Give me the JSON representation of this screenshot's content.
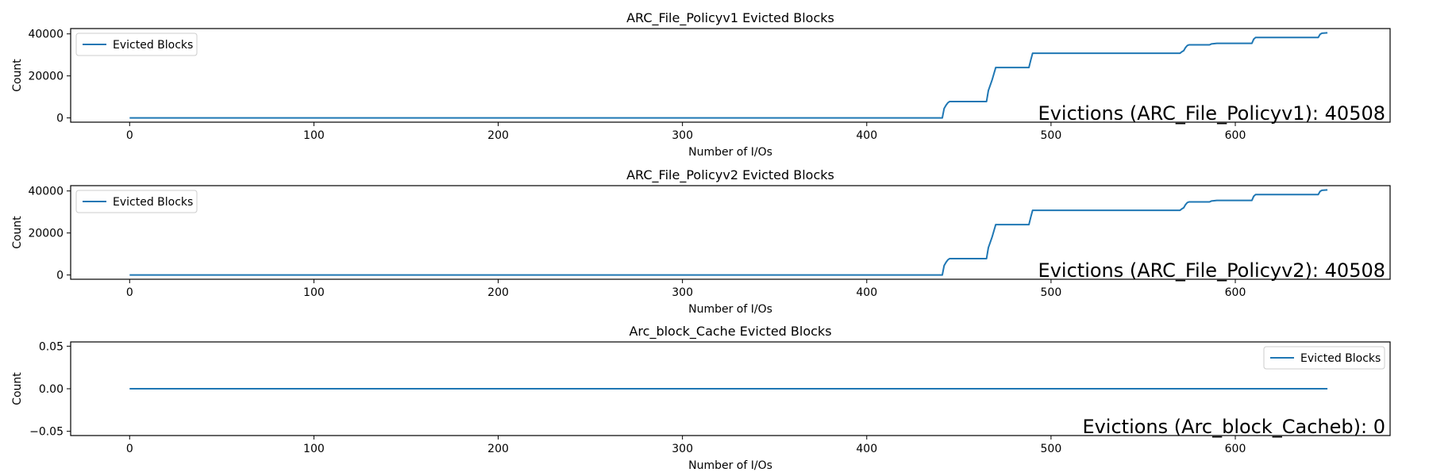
{
  "chart_data": [
    {
      "type": "line",
      "title": "ARC_File_Policyv1 Evicted Blocks",
      "xlabel": "Number of I/Os",
      "ylabel": "Count",
      "xlim": [
        -32,
        684
      ],
      "ylim": [
        -2025,
        42533
      ],
      "xticks": [
        0,
        100,
        200,
        300,
        400,
        500,
        600
      ],
      "xtick_labels": [
        "0",
        "100",
        "200",
        "300",
        "400",
        "500",
        "600"
      ],
      "yticks": [
        0,
        20000,
        40000
      ],
      "ytick_labels": [
        "0",
        "20000",
        "40000"
      ],
      "legend": {
        "label": "Evicted Blocks",
        "position": "upper-left"
      },
      "annotation": "Evictions (ARC_File_Policyv1): 40508",
      "grid": false,
      "series": [
        {
          "name": "Evicted Blocks",
          "color": "#1f77b4",
          "x": [
            0,
            441,
            442,
            443,
            444,
            445,
            465,
            466,
            467,
            468,
            469,
            470,
            488,
            489,
            490,
            570,
            571,
            572,
            573,
            574,
            575,
            586,
            587,
            588,
            590,
            591,
            609,
            610,
            611,
            645,
            646,
            647,
            650
          ],
          "y": [
            0,
            0,
            4500,
            6000,
            7200,
            7800,
            7800,
            13000,
            15500,
            18000,
            21000,
            24000,
            24000,
            27500,
            30800,
            30800,
            31500,
            32000,
            33500,
            34500,
            34800,
            34800,
            35200,
            35300,
            35500,
            35500,
            35500,
            37500,
            38300,
            38300,
            39800,
            40300,
            40508
          ]
        }
      ]
    },
    {
      "type": "line",
      "title": "ARC_File_Policyv2 Evicted Blocks",
      "xlabel": "Number of I/Os",
      "ylabel": "Count",
      "xlim": [
        -32,
        684
      ],
      "ylim": [
        -2025,
        42533
      ],
      "xticks": [
        0,
        100,
        200,
        300,
        400,
        500,
        600
      ],
      "xtick_labels": [
        "0",
        "100",
        "200",
        "300",
        "400",
        "500",
        "600"
      ],
      "yticks": [
        0,
        20000,
        40000
      ],
      "ytick_labels": [
        "0",
        "20000",
        "40000"
      ],
      "legend": {
        "label": "Evicted Blocks",
        "position": "upper-left"
      },
      "annotation": "Evictions (ARC_File_Policyv2): 40508",
      "grid": false,
      "series": [
        {
          "name": "Evicted Blocks",
          "color": "#1f77b4",
          "x": [
            0,
            441,
            442,
            443,
            444,
            445,
            465,
            466,
            467,
            468,
            469,
            470,
            488,
            489,
            490,
            570,
            571,
            572,
            573,
            574,
            575,
            586,
            587,
            588,
            590,
            591,
            609,
            610,
            611,
            645,
            646,
            647,
            650
          ],
          "y": [
            0,
            0,
            4500,
            6000,
            7200,
            7800,
            7800,
            13000,
            15500,
            18000,
            21000,
            24000,
            24000,
            27500,
            30800,
            30800,
            31500,
            32000,
            33500,
            34500,
            34800,
            34800,
            35200,
            35300,
            35500,
            35500,
            35500,
            37500,
            38300,
            38300,
            39800,
            40300,
            40508
          ]
        }
      ]
    },
    {
      "type": "line",
      "title": "Arc_block_Cache Evicted Blocks",
      "xlabel": "Number of I/Os",
      "ylabel": "Count",
      "xlim": [
        -32,
        684
      ],
      "ylim": [
        -0.055,
        0.055
      ],
      "xticks": [
        0,
        100,
        200,
        300,
        400,
        500,
        600
      ],
      "xtick_labels": [
        "0",
        "100",
        "200",
        "300",
        "400",
        "500",
        "600"
      ],
      "yticks": [
        -0.05,
        0.0,
        0.05
      ],
      "ytick_labels": [
        "−0.05",
        "0.00",
        "0.05"
      ],
      "legend": {
        "label": "Evicted Blocks",
        "position": "upper-right"
      },
      "annotation": "Evictions (Arc_block_Cacheb): 0",
      "grid": false,
      "series": [
        {
          "name": "Evicted Blocks",
          "color": "#1f77b4",
          "x": [
            0,
            650
          ],
          "y": [
            0,
            0
          ]
        }
      ]
    }
  ]
}
